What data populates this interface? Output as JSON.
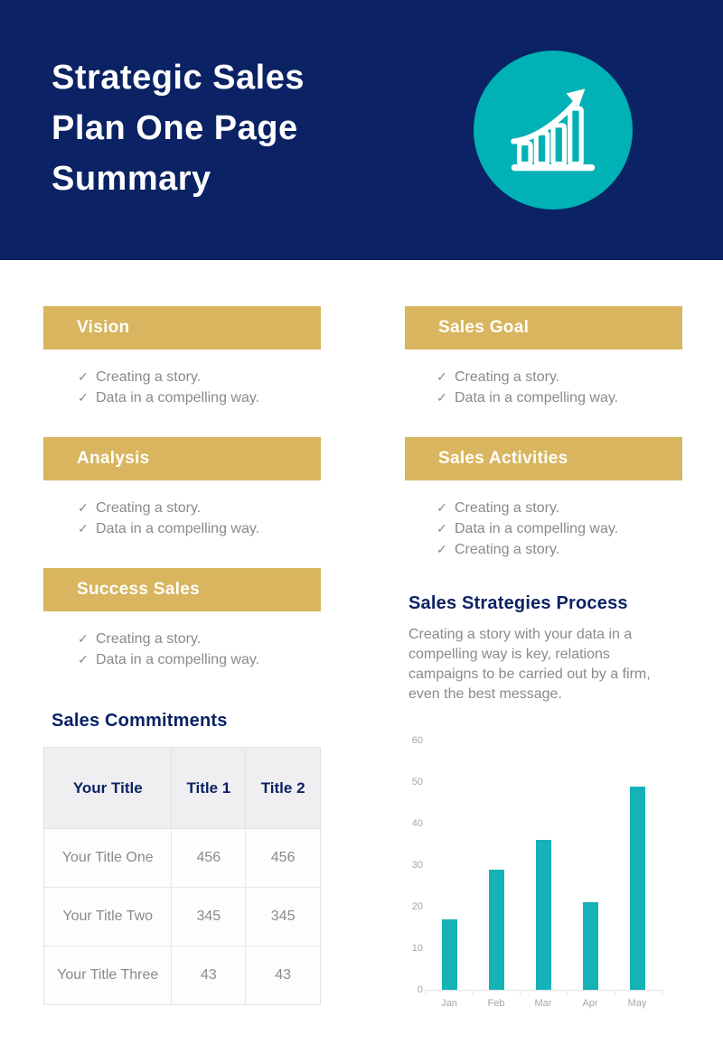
{
  "header": {
    "title_lines": [
      "Strategic Sales",
      "Plan One Page",
      "Summary"
    ],
    "icon": "growth-chart-icon"
  },
  "ui": {
    "bullet_check": "✓"
  },
  "colors": {
    "navy": "#0b2264",
    "gold": "#d8b55e",
    "teal": "#00b1b6",
    "bar_teal": "#15b2b8",
    "gray_text": "#8a8a8a"
  },
  "sections": [
    {
      "title": "Vision",
      "items": [
        "Creating a story.",
        "Data in a compelling way."
      ]
    },
    {
      "title": "Sales Goal",
      "items": [
        "Creating a story.",
        "Data in a compelling way."
      ]
    },
    {
      "title": "Analysis",
      "items": [
        "Creating a story.",
        "Data in a compelling way."
      ]
    },
    {
      "title": "Sales Activities",
      "items": [
        "Creating a story.",
        "Data in a compelling way.",
        "Creating a story."
      ]
    },
    {
      "title": "Success Sales",
      "items": [
        "Creating a story.",
        "Data in a compelling way."
      ]
    }
  ],
  "strategies": {
    "title": "Sales Strategies Process",
    "paragraph": "Creating a story with your data in a compelling way is key, relations campaigns to be carried out by a firm, even the best message."
  },
  "commitments": {
    "title": "Sales Commitments",
    "table": {
      "columns": [
        "Your Title",
        "Title 1",
        "Title 2"
      ],
      "rows": [
        [
          "Your Title One",
          "456",
          "456"
        ],
        [
          "Your Title Two",
          "345",
          "345"
        ],
        [
          "Your Title Three",
          "43",
          "43"
        ]
      ]
    }
  },
  "chart_data": {
    "type": "bar",
    "categories": [
      "Jan",
      "Feb",
      "Mar",
      "Apr",
      "May"
    ],
    "values": [
      17,
      29,
      36,
      21,
      49
    ],
    "title": "",
    "xlabel": "",
    "ylabel": "",
    "ylim": [
      0,
      60
    ],
    "yticks": [
      0,
      10,
      20,
      30,
      40,
      50,
      60
    ],
    "grid": false,
    "legend": false,
    "bar_color": "#15b2b8"
  }
}
